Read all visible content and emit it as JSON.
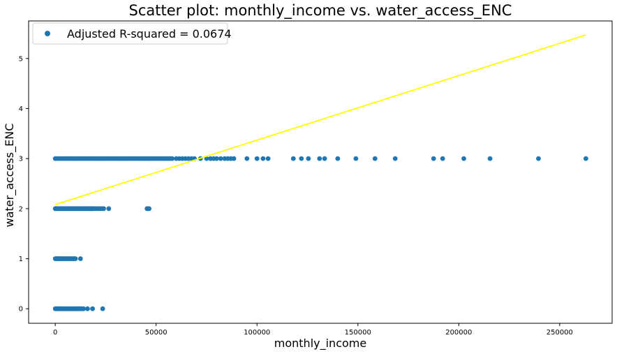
{
  "chart_data": {
    "type": "scatter",
    "title": "Scatter plot: monthly_income vs. water_access_ENC",
    "xlabel": "monthly_income",
    "ylabel": "water_access_ENC",
    "xlim": [
      -13200,
      276000
    ],
    "ylim": [
      -0.29,
      5.75
    ],
    "xticks": [
      0,
      50000,
      100000,
      150000,
      200000,
      250000
    ],
    "yticks": [
      0,
      1,
      2,
      3,
      4,
      5
    ],
    "grid": false,
    "legend_position": "top-left",
    "series": [
      {
        "name": "Adjusted R-squared = 0.0674",
        "kind": "points",
        "color": "#1f77b4",
        "points": [
          [
            0,
            0
          ],
          [
            400,
            0
          ],
          [
            800,
            0
          ],
          [
            1200,
            0
          ],
          [
            1600,
            0
          ],
          [
            2000,
            0
          ],
          [
            2500,
            0
          ],
          [
            3000,
            0
          ],
          [
            3500,
            0
          ],
          [
            4000,
            0
          ],
          [
            4500,
            0
          ],
          [
            5000,
            0
          ],
          [
            5500,
            0
          ],
          [
            6000,
            0
          ],
          [
            6500,
            0
          ],
          [
            7000,
            0
          ],
          [
            7500,
            0
          ],
          [
            8000,
            0
          ],
          [
            8500,
            0
          ],
          [
            9000,
            0
          ],
          [
            9500,
            0
          ],
          [
            10000,
            0
          ],
          [
            10500,
            0
          ],
          [
            11000,
            0
          ],
          [
            11500,
            0
          ],
          [
            12000,
            0
          ],
          [
            12500,
            0
          ],
          [
            13000,
            0
          ],
          [
            14000,
            0
          ],
          [
            16000,
            0
          ],
          [
            18500,
            0
          ],
          [
            23500,
            0
          ],
          [
            0,
            1
          ],
          [
            400,
            1
          ],
          [
            800,
            1
          ],
          [
            1200,
            1
          ],
          [
            1600,
            1
          ],
          [
            2000,
            1
          ],
          [
            2500,
            1
          ],
          [
            3000,
            1
          ],
          [
            3500,
            1
          ],
          [
            4000,
            1
          ],
          [
            4500,
            1
          ],
          [
            5000,
            1
          ],
          [
            5500,
            1
          ],
          [
            6000,
            1
          ],
          [
            6500,
            1
          ],
          [
            7000,
            1
          ],
          [
            7500,
            1
          ],
          [
            8000,
            1
          ],
          [
            8500,
            1
          ],
          [
            9000,
            1
          ],
          [
            9500,
            1
          ],
          [
            10000,
            1
          ],
          [
            12500,
            1
          ],
          [
            0,
            2
          ],
          [
            500,
            2
          ],
          [
            1000,
            2
          ],
          [
            1500,
            2
          ],
          [
            2000,
            2
          ],
          [
            2500,
            2
          ],
          [
            3000,
            2
          ],
          [
            3500,
            2
          ],
          [
            4000,
            2
          ],
          [
            4500,
            2
          ],
          [
            5000,
            2
          ],
          [
            5500,
            2
          ],
          [
            6000,
            2
          ],
          [
            6500,
            2
          ],
          [
            7000,
            2
          ],
          [
            7500,
            2
          ],
          [
            8000,
            2
          ],
          [
            8500,
            2
          ],
          [
            9000,
            2
          ],
          [
            9500,
            2
          ],
          [
            10000,
            2
          ],
          [
            10500,
            2
          ],
          [
            11000,
            2
          ],
          [
            11500,
            2
          ],
          [
            12000,
            2
          ],
          [
            12500,
            2
          ],
          [
            13000,
            2
          ],
          [
            13500,
            2
          ],
          [
            14000,
            2
          ],
          [
            14500,
            2
          ],
          [
            15000,
            2
          ],
          [
            15500,
            2
          ],
          [
            16000,
            2
          ],
          [
            16500,
            2
          ],
          [
            17000,
            2
          ],
          [
            17500,
            2
          ],
          [
            18000,
            2
          ],
          [
            18500,
            2
          ],
          [
            19000,
            2
          ],
          [
            20000,
            2
          ],
          [
            21000,
            2
          ],
          [
            22000,
            2
          ],
          [
            23000,
            2
          ],
          [
            24000,
            2
          ],
          [
            26500,
            2
          ],
          [
            45500,
            2
          ],
          [
            46000,
            2
          ],
          [
            46500,
            2
          ],
          [
            0,
            3
          ],
          [
            1000,
            3
          ],
          [
            2000,
            3
          ],
          [
            3000,
            3
          ],
          [
            4000,
            3
          ],
          [
            5000,
            3
          ],
          [
            6000,
            3
          ],
          [
            7000,
            3
          ],
          [
            8000,
            3
          ],
          [
            9000,
            3
          ],
          [
            10000,
            3
          ],
          [
            11000,
            3
          ],
          [
            12000,
            3
          ],
          [
            13000,
            3
          ],
          [
            14000,
            3
          ],
          [
            15000,
            3
          ],
          [
            16000,
            3
          ],
          [
            17000,
            3
          ],
          [
            18000,
            3
          ],
          [
            19000,
            3
          ],
          [
            20000,
            3
          ],
          [
            21000,
            3
          ],
          [
            22000,
            3
          ],
          [
            23000,
            3
          ],
          [
            24000,
            3
          ],
          [
            25000,
            3
          ],
          [
            26000,
            3
          ],
          [
            27000,
            3
          ],
          [
            28000,
            3
          ],
          [
            29000,
            3
          ],
          [
            30000,
            3
          ],
          [
            31000,
            3
          ],
          [
            32000,
            3
          ],
          [
            33000,
            3
          ],
          [
            34000,
            3
          ],
          [
            35000,
            3
          ],
          [
            36000,
            3
          ],
          [
            37000,
            3
          ],
          [
            38000,
            3
          ],
          [
            39000,
            3
          ],
          [
            40000,
            3
          ],
          [
            41000,
            3
          ],
          [
            42000,
            3
          ],
          [
            43000,
            3
          ],
          [
            44000,
            3
          ],
          [
            45000,
            3
          ],
          [
            46000,
            3
          ],
          [
            47000,
            3
          ],
          [
            48000,
            3
          ],
          [
            49000,
            3
          ],
          [
            50000,
            3
          ],
          [
            51000,
            3
          ],
          [
            52000,
            3
          ],
          [
            53000,
            3
          ],
          [
            54000,
            3
          ],
          [
            55000,
            3
          ],
          [
            56000,
            3
          ],
          [
            57000,
            3
          ],
          [
            58000,
            3
          ],
          [
            60000,
            3
          ],
          [
            61500,
            3
          ],
          [
            63000,
            3
          ],
          [
            64500,
            3
          ],
          [
            66000,
            3
          ],
          [
            67500,
            3
          ],
          [
            69000,
            3
          ],
          [
            72000,
            3
          ],
          [
            75000,
            3
          ],
          [
            77000,
            3
          ],
          [
            78500,
            3
          ],
          [
            80000,
            3
          ],
          [
            82000,
            3
          ],
          [
            84000,
            3
          ],
          [
            85500,
            3
          ],
          [
            87000,
            3
          ],
          [
            88500,
            3
          ],
          [
            95000,
            3
          ],
          [
            100000,
            3
          ],
          [
            103000,
            3
          ],
          [
            105500,
            3
          ],
          [
            118000,
            3
          ],
          [
            122000,
            3
          ],
          [
            125500,
            3
          ],
          [
            131000,
            3
          ],
          [
            133500,
            3
          ],
          [
            140000,
            3
          ],
          [
            149000,
            3
          ],
          [
            158500,
            3
          ],
          [
            168500,
            3
          ],
          [
            187500,
            3
          ],
          [
            192000,
            3
          ],
          [
            202500,
            3
          ],
          [
            215500,
            3
          ],
          [
            239500,
            3
          ],
          [
            263000,
            3
          ]
        ]
      },
      {
        "kind": "line",
        "color": "#ffff00",
        "points": [
          [
            0,
            2.08
          ],
          [
            263000,
            5.47
          ]
        ]
      }
    ]
  }
}
